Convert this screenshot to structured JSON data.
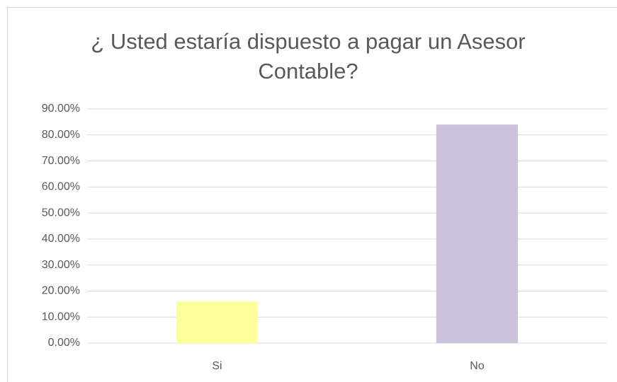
{
  "chart_data": {
    "type": "bar",
    "title": "¿ Usted estaría dispuesto a pagar un Asesor Contable?",
    "categories": [
      "Si",
      "No"
    ],
    "values": [
      16,
      84
    ],
    "colors": [
      "#ffff99",
      "#ccc1da"
    ],
    "ylim": [
      0,
      90
    ],
    "yticks": [
      {
        "value": 0,
        "label": "0.00%"
      },
      {
        "value": 10,
        "label": "10.00%"
      },
      {
        "value": 20,
        "label": "20.00%"
      },
      {
        "value": 30,
        "label": "30.00%"
      },
      {
        "value": 40,
        "label": "40.00%"
      },
      {
        "value": 50,
        "label": "50.00%"
      },
      {
        "value": 60,
        "label": "60.00%"
      },
      {
        "value": 70,
        "label": "70.00%"
      },
      {
        "value": 80,
        "label": "80.00%"
      },
      {
        "value": 90,
        "label": "90.00%"
      }
    ],
    "grid": true
  }
}
